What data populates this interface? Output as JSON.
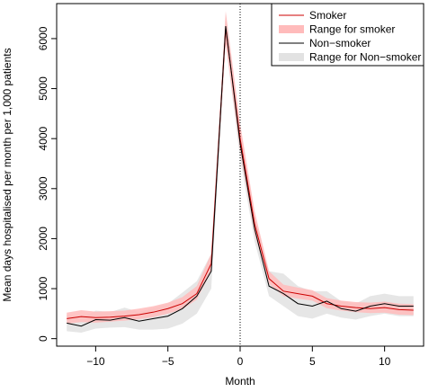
{
  "chart_data": {
    "type": "line",
    "xlabel": "Month",
    "ylabel": "Mean days hospitalised per month per 1,000 patients",
    "xlim": [
      -12.7,
      12.7
    ],
    "ylim": [
      -150,
      6700
    ],
    "x_ticks": [
      -10,
      -5,
      0,
      5,
      10
    ],
    "y_ticks": [
      0,
      1000,
      2000,
      3000,
      4000,
      5000,
      6000
    ],
    "reference_line": {
      "x": 0,
      "style": "dotted"
    },
    "x": [
      -12,
      -11,
      -10,
      -9,
      -8,
      -7,
      -6,
      -5,
      -4,
      -3,
      -2,
      -1,
      0,
      1,
      2,
      3,
      4,
      5,
      6,
      7,
      8,
      9,
      10,
      11,
      12
    ],
    "series": [
      {
        "name": "Smoker",
        "kind": "line",
        "color": "#cc0000",
        "values": [
          400,
          440,
          420,
          430,
          450,
          480,
          530,
          600,
          700,
          900,
          1500,
          6200,
          4000,
          2300,
          1200,
          950,
          900,
          850,
          700,
          650,
          620,
          600,
          620,
          580,
          570
        ]
      },
      {
        "name": "Range for smoker",
        "kind": "band",
        "color": "#ffbbbb",
        "lower": [
          300,
          330,
          320,
          340,
          360,
          390,
          430,
          500,
          590,
          780,
          1350,
          5900,
          3750,
          2100,
          1100,
          850,
          800,
          760,
          610,
          560,
          530,
          510,
          520,
          480,
          470
        ],
        "upper": [
          520,
          570,
          540,
          550,
          560,
          600,
          650,
          720,
          830,
          1050,
          1700,
          6550,
          4300,
          2550,
          1350,
          1080,
          1020,
          970,
          810,
          760,
          730,
          720,
          740,
          700,
          690
        ]
      },
      {
        "name": "Non−smoker",
        "kind": "line",
        "color": "#000000",
        "values": [
          310,
          250,
          380,
          370,
          420,
          350,
          400,
          450,
          600,
          850,
          1350,
          6250,
          3900,
          2200,
          1050,
          900,
          700,
          650,
          750,
          600,
          550,
          650,
          700,
          650,
          650
        ]
      },
      {
        "name": "Range for Non−smoker",
        "kind": "band",
        "color": "#e2e2e2",
        "lower": [
          150,
          120,
          200,
          220,
          230,
          180,
          180,
          200,
          300,
          500,
          1000,
          5900,
          3600,
          1950,
          850,
          650,
          450,
          400,
          500,
          420,
          380,
          450,
          500,
          450,
          450
        ],
        "upper": [
          480,
          400,
          560,
          530,
          620,
          530,
          620,
          700,
          920,
          1150,
          1700,
          6500,
          4200,
          2450,
          1350,
          1300,
          1050,
          950,
          950,
          750,
          700,
          850,
          900,
          850,
          850
        ]
      }
    ],
    "legend": {
      "position": "top-right",
      "entries": [
        "Smoker",
        "Range for smoker",
        "Non−smoker",
        "Range for Non−smoker"
      ]
    }
  }
}
